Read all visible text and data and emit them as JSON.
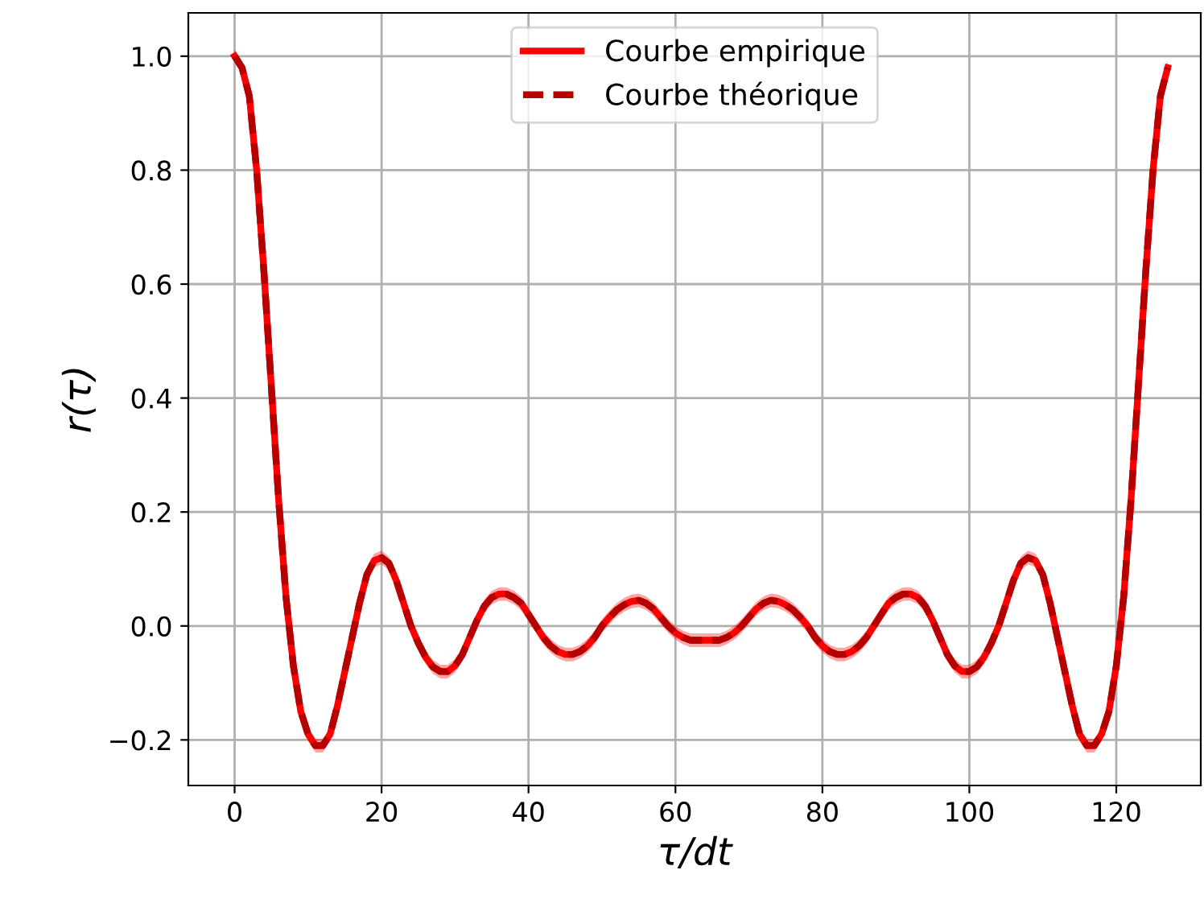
{
  "chart_data": {
    "type": "line",
    "xlabel": "τ/dt",
    "ylabel": "r(τ)",
    "x": [
      0,
      1,
      2,
      3,
      4,
      5,
      6,
      7,
      8,
      9,
      10,
      11,
      12,
      13,
      14,
      15,
      16,
      17,
      18,
      19,
      20,
      21,
      22,
      23,
      24,
      25,
      26,
      27,
      28,
      29,
      30,
      31,
      32,
      33,
      34,
      35,
      36,
      37,
      38,
      39,
      40,
      41,
      42,
      43,
      44,
      45,
      46,
      47,
      48,
      49,
      50,
      51,
      52,
      53,
      54,
      55,
      56,
      57,
      58,
      59,
      60,
      61,
      62,
      63,
      64,
      65,
      66,
      67,
      68,
      69,
      70,
      71,
      72,
      73,
      74,
      75,
      76,
      77,
      78,
      79,
      80,
      81,
      82,
      83,
      84,
      85,
      86,
      87,
      88,
      89,
      90,
      91,
      92,
      93,
      94,
      95,
      96,
      97,
      98,
      99,
      100,
      101,
      102,
      103,
      104,
      105,
      106,
      107,
      108,
      109,
      110,
      111,
      112,
      113,
      114,
      115,
      116,
      117,
      118,
      119,
      120,
      121,
      122,
      123,
      124,
      125,
      126,
      127
    ],
    "series": [
      {
        "name": "Courbe empirique",
        "color": "#ff0000",
        "line_style": "solid",
        "values": [
          1.0,
          0.98,
          0.93,
          0.8,
          0.62,
          0.42,
          0.22,
          0.05,
          -0.07,
          -0.15,
          -0.19,
          -0.21,
          -0.21,
          -0.19,
          -0.14,
          -0.08,
          -0.02,
          0.04,
          0.09,
          0.115,
          0.12,
          0.11,
          0.08,
          0.04,
          0.0,
          -0.03,
          -0.055,
          -0.072,
          -0.08,
          -0.08,
          -0.07,
          -0.05,
          -0.02,
          0.01,
          0.035,
          0.05,
          0.056,
          0.056,
          0.05,
          0.04,
          0.02,
          0.0,
          -0.02,
          -0.035,
          -0.045,
          -0.05,
          -0.05,
          -0.045,
          -0.035,
          -0.02,
          0.0,
          0.015,
          0.028,
          0.037,
          0.043,
          0.045,
          0.04,
          0.03,
          0.015,
          0.0,
          -0.012,
          -0.02,
          -0.025,
          -0.025,
          -0.025,
          -0.025,
          -0.025,
          -0.02,
          -0.012,
          0.0,
          0.015,
          0.03,
          0.04,
          0.045,
          0.043,
          0.037,
          0.028,
          0.015,
          0.0,
          -0.02,
          -0.035,
          -0.045,
          -0.05,
          -0.05,
          -0.045,
          -0.035,
          -0.02,
          0.0,
          0.02,
          0.04,
          0.05,
          0.056,
          0.056,
          0.05,
          0.035,
          0.01,
          -0.02,
          -0.05,
          -0.07,
          -0.08,
          -0.08,
          -0.072,
          -0.055,
          -0.03,
          0.0,
          0.04,
          0.08,
          0.11,
          0.12,
          0.115,
          0.09,
          0.04,
          -0.02,
          -0.08,
          -0.14,
          -0.19,
          -0.21,
          -0.21,
          -0.19,
          -0.15,
          -0.07,
          0.05,
          0.22,
          0.42,
          0.62,
          0.8,
          0.93,
          0.98
        ],
        "upper": [
          1.012,
          0.992,
          0.942,
          0.812,
          0.632,
          0.432,
          0.232,
          0.062,
          -0.058,
          -0.138,
          -0.178,
          -0.198,
          -0.198,
          -0.178,
          -0.128,
          -0.068,
          -0.008,
          0.052,
          0.102,
          0.127,
          0.132,
          0.122,
          0.092,
          0.052,
          0.012,
          -0.018,
          -0.043,
          -0.06,
          -0.068,
          -0.068,
          -0.058,
          -0.038,
          -0.008,
          0.022,
          0.047,
          0.062,
          0.068,
          0.068,
          0.062,
          0.052,
          0.032,
          0.012,
          -0.008,
          -0.023,
          -0.033,
          -0.038,
          -0.038,
          -0.033,
          -0.023,
          -0.008,
          0.012,
          0.027,
          0.04,
          0.049,
          0.055,
          0.057,
          0.052,
          0.042,
          0.027,
          0.012,
          0.0,
          -0.008,
          -0.013,
          -0.013,
          -0.013,
          -0.013,
          -0.013,
          -0.008,
          0.0,
          0.012,
          0.027,
          0.042,
          0.052,
          0.057,
          0.055,
          0.049,
          0.04,
          0.027,
          0.012,
          -0.008,
          -0.023,
          -0.033,
          -0.038,
          -0.038,
          -0.033,
          -0.023,
          -0.008,
          0.012,
          0.032,
          0.052,
          0.062,
          0.068,
          0.068,
          0.062,
          0.047,
          0.022,
          -0.008,
          -0.038,
          -0.058,
          -0.068,
          -0.068,
          -0.06,
          -0.043,
          -0.018,
          0.012,
          0.052,
          0.092,
          0.122,
          0.132,
          0.127,
          0.102,
          0.052,
          -0.008,
          -0.068,
          -0.128,
          -0.178,
          -0.198,
          -0.198,
          -0.178,
          -0.138,
          -0.058,
          0.062,
          0.232,
          0.432,
          0.632,
          0.812,
          0.942,
          0.992
        ],
        "lower": [
          0.988,
          0.968,
          0.918,
          0.788,
          0.608,
          0.408,
          0.208,
          0.038,
          -0.082,
          -0.162,
          -0.202,
          -0.222,
          -0.222,
          -0.202,
          -0.152,
          -0.092,
          -0.032,
          0.028,
          0.078,
          0.103,
          0.108,
          0.098,
          0.068,
          0.028,
          -0.012,
          -0.042,
          -0.067,
          -0.084,
          -0.092,
          -0.092,
          -0.082,
          -0.062,
          -0.032,
          -0.002,
          0.023,
          0.038,
          0.044,
          0.044,
          0.038,
          0.028,
          0.008,
          -0.012,
          -0.032,
          -0.047,
          -0.057,
          -0.062,
          -0.062,
          -0.057,
          -0.047,
          -0.032,
          -0.012,
          0.003,
          0.016,
          0.025,
          0.031,
          0.033,
          0.028,
          0.018,
          0.003,
          -0.012,
          -0.024,
          -0.032,
          -0.037,
          -0.037,
          -0.037,
          -0.037,
          -0.037,
          -0.032,
          -0.024,
          -0.012,
          0.003,
          0.018,
          0.028,
          0.033,
          0.031,
          0.025,
          0.016,
          0.003,
          -0.012,
          -0.032,
          -0.047,
          -0.057,
          -0.062,
          -0.062,
          -0.057,
          -0.047,
          -0.032,
          -0.012,
          0.008,
          0.028,
          0.038,
          0.044,
          0.044,
          0.038,
          0.023,
          -0.002,
          -0.032,
          -0.062,
          -0.082,
          -0.092,
          -0.092,
          -0.084,
          -0.067,
          -0.042,
          -0.012,
          0.028,
          0.068,
          0.098,
          0.108,
          0.103,
          0.078,
          0.028,
          -0.032,
          -0.092,
          -0.152,
          -0.202,
          -0.222,
          -0.222,
          -0.202,
          -0.162,
          -0.082,
          0.038,
          0.208,
          0.408,
          0.608,
          0.788,
          0.918,
          0.968
        ]
      },
      {
        "name": "Courbe théorique",
        "color": "#b40000",
        "line_style": "dashed",
        "values": [
          1.0,
          0.98,
          0.93,
          0.8,
          0.62,
          0.42,
          0.22,
          0.05,
          -0.07,
          -0.15,
          -0.19,
          -0.21,
          -0.21,
          -0.19,
          -0.14,
          -0.08,
          -0.02,
          0.04,
          0.09,
          0.115,
          0.12,
          0.11,
          0.08,
          0.04,
          0.0,
          -0.03,
          -0.055,
          -0.072,
          -0.08,
          -0.08,
          -0.07,
          -0.05,
          -0.02,
          0.01,
          0.035,
          0.05,
          0.056,
          0.056,
          0.05,
          0.04,
          0.02,
          0.0,
          -0.02,
          -0.035,
          -0.045,
          -0.05,
          -0.05,
          -0.045,
          -0.035,
          -0.02,
          0.0,
          0.015,
          0.028,
          0.037,
          0.043,
          0.045,
          0.04,
          0.03,
          0.015,
          0.0,
          -0.012,
          -0.02,
          -0.025,
          -0.025,
          -0.025,
          -0.025,
          -0.025,
          -0.02,
          -0.012,
          0.0,
          0.015,
          0.03,
          0.04,
          0.045,
          0.043,
          0.037,
          0.028,
          0.015,
          0.0,
          -0.02,
          -0.035,
          -0.045,
          -0.05,
          -0.05,
          -0.045,
          -0.035,
          -0.02,
          0.0,
          0.02,
          0.04,
          0.05,
          0.056,
          0.056,
          0.05,
          0.035,
          0.01,
          -0.02,
          -0.05,
          -0.07,
          -0.08,
          -0.08,
          -0.072,
          -0.055,
          -0.03,
          0.0,
          0.04,
          0.08,
          0.11,
          0.12,
          0.115,
          0.09,
          0.04,
          -0.02,
          -0.08,
          -0.14,
          -0.19,
          -0.21,
          -0.21,
          -0.19,
          -0.15,
          -0.07,
          0.05,
          0.22,
          0.42,
          0.62,
          0.8,
          0.93,
          0.98
        ]
      }
    ],
    "xlim": [
      -6.3,
      131.5
    ],
    "xticks": [
      0,
      20,
      40,
      60,
      80,
      100,
      120
    ],
    "ylim": [
      -0.28,
      1.076
    ],
    "yticks": [
      {
        "value": -0.2,
        "label": "−0.2"
      },
      {
        "value": 0.0,
        "label": "0.0"
      },
      {
        "value": 0.2,
        "label": "0.2"
      },
      {
        "value": 0.4,
        "label": "0.4"
      },
      {
        "value": 0.6,
        "label": "0.6"
      },
      {
        "value": 0.8,
        "label": "0.8"
      },
      {
        "value": 1.0,
        "label": "1.0"
      }
    ],
    "grid": true,
    "legend": "top",
    "marker": "none"
  }
}
